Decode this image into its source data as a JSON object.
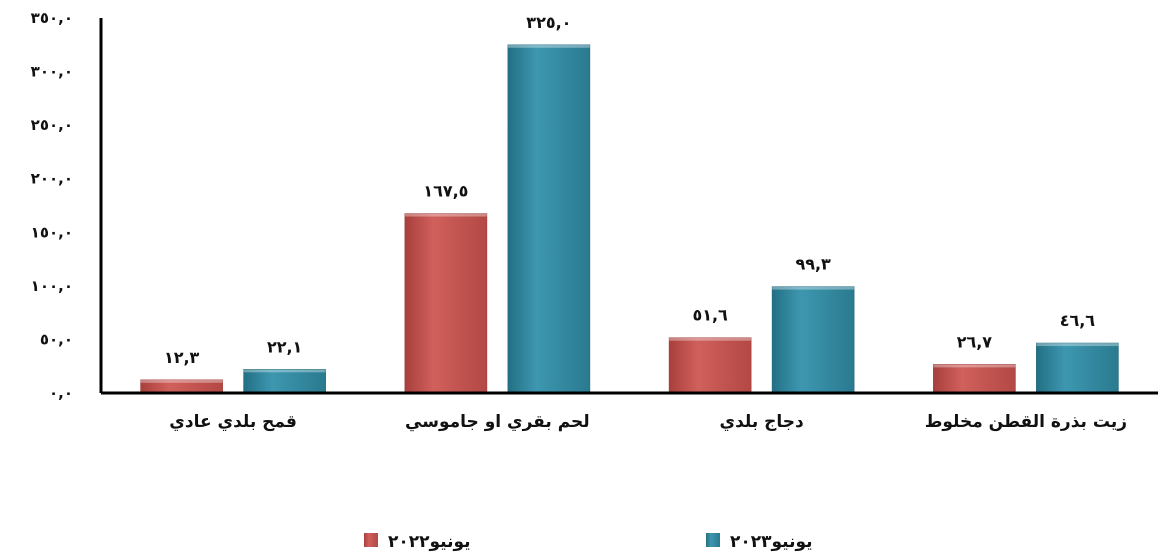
{
  "colors": {
    "series_2022": "#c0504d",
    "series_2023": "#31859c",
    "axis": "#000000"
  },
  "chart_data": {
    "type": "bar",
    "categories": [
      "قمح بلدي عادي",
      "لحم بقري او جاموسي",
      "دجاج بلدي",
      "زيت بذرة القطن مخلوط"
    ],
    "series": [
      {
        "name": "يونيو٢٠٢٢",
        "values": [
          12.3,
          167.5,
          51.6,
          26.7
        ],
        "labels": [
          "١٢,٣",
          "١٦٧,٥",
          "٥١,٦",
          "٢٦,٧"
        ]
      },
      {
        "name": "يونيو٢٠٢٣",
        "values": [
          22.1,
          325.0,
          99.3,
          46.6
        ],
        "labels": [
          "٢٢,١",
          "٣٢٥,٠",
          "٩٩,٣",
          "٤٦,٦"
        ]
      }
    ],
    "ylim": [
      0,
      350
    ],
    "yticks": [
      0,
      50,
      100,
      150,
      200,
      250,
      300,
      350
    ],
    "ytick_labels": [
      "٠,٠",
      "٥٠,٠",
      "١٠٠,٠",
      "١٥٠,٠",
      "٢٠٠,٠",
      "٢٥٠,٠",
      "٣٠٠,٠",
      "٣٥٠,٠"
    ],
    "grid": false,
    "legend_position": "bottom"
  }
}
